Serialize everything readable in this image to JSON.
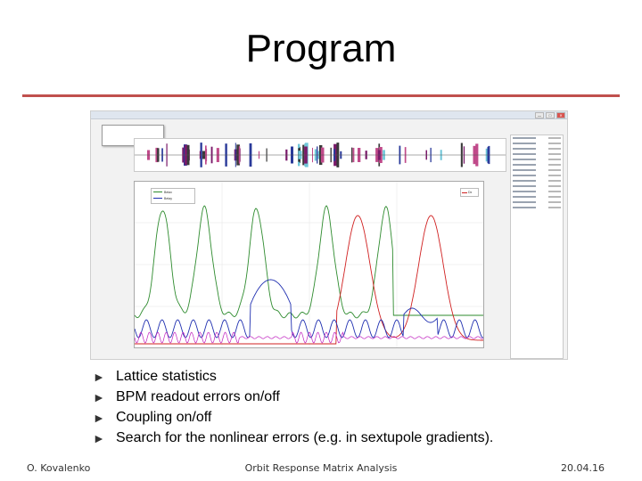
{
  "slide": {
    "title": "Program",
    "bullets": [
      "Lattice statistics",
      "BPM readout errors on/off",
      "Coupling on/off",
      "Search for the nonlinear errors (e.g. in sextupole gradients)."
    ],
    "bullet_marker": "►",
    "footer": {
      "author": "O. Kovalenko",
      "center": "Orbit Response Matrix Analysis",
      "date": "20.04.16"
    }
  },
  "screenshot": {
    "window_controls": [
      "—",
      "□",
      "✕"
    ],
    "plot": {
      "legend_left": [
        "Betax",
        "Betay"
      ],
      "legend_right": [
        "Dx"
      ],
      "colors": {
        "betax": "#2e8b2e",
        "betay": "#1f2fb0",
        "dx": "#d02020",
        "magenta": "#c020c0"
      }
    }
  }
}
